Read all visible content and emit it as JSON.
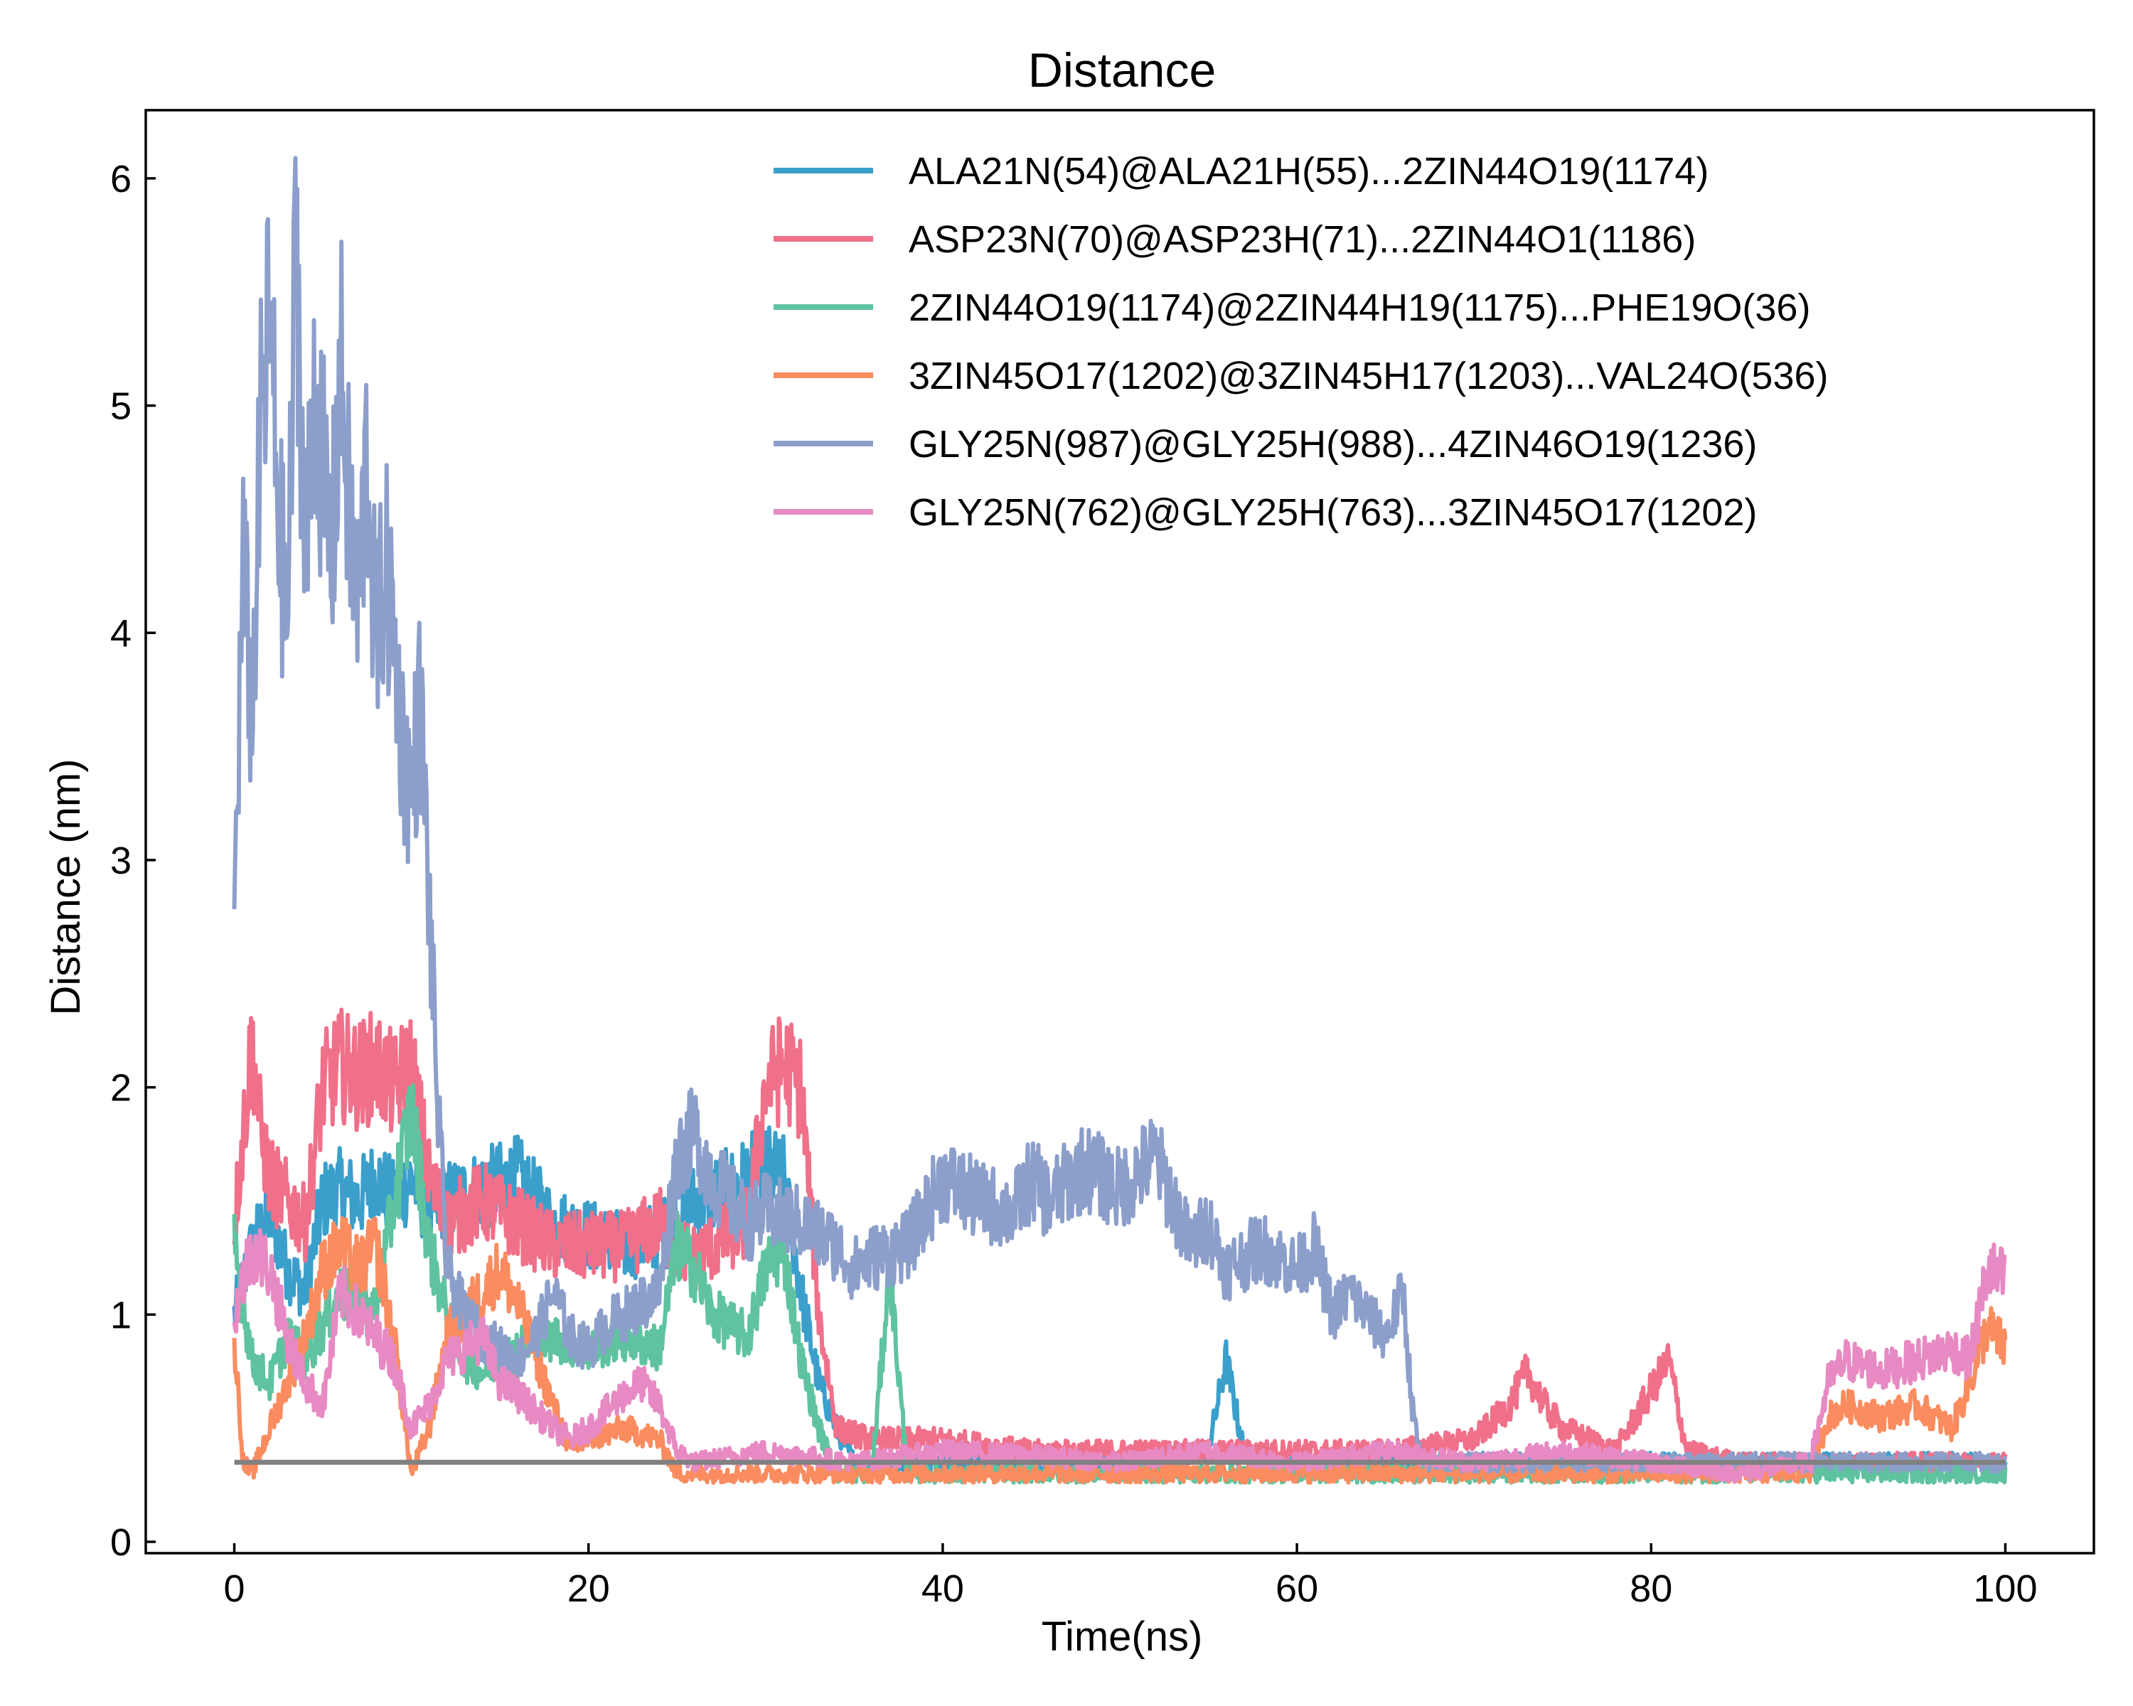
{
  "chart_data": {
    "type": "line",
    "title": "Distance",
    "xlabel": "Time(ns)",
    "ylabel": "Distance (nm)",
    "xlim": [
      -5,
      105
    ],
    "ylim": [
      -0.05,
      6.3
    ],
    "xticks": [
      0,
      20,
      40,
      60,
      80,
      100
    ],
    "yticks": [
      0,
      1,
      2,
      3,
      4,
      5,
      6
    ],
    "legend_position": "top-right",
    "grid": false,
    "reference_line": {
      "y": 0.35,
      "color": "#808080"
    },
    "series": [
      {
        "name": "ALA21N(54)@ALA21H(55)...2ZIN44O19(1174)",
        "color": "#3a9fcb",
        "x": [
          0,
          1,
          2,
          3,
          4,
          5,
          6,
          7,
          8,
          9,
          10,
          11,
          12,
          14,
          16,
          18,
          20,
          22,
          24,
          25,
          26,
          28,
          30,
          31,
          32,
          33,
          34,
          35,
          37,
          40,
          45,
          50,
          55,
          56,
          57,
          58,
          60,
          65,
          70,
          75,
          80,
          85,
          90,
          95,
          100
        ],
        "y": [
          1.0,
          1.3,
          1.45,
          1.2,
          1.1,
          1.5,
          1.55,
          1.5,
          1.6,
          1.5,
          1.6,
          1.45,
          1.5,
          1.55,
          1.6,
          1.4,
          1.35,
          1.3,
          1.35,
          1.4,
          1.5,
          1.55,
          1.65,
          1.6,
          1.1,
          0.7,
          0.5,
          0.35,
          0.35,
          0.35,
          0.35,
          0.35,
          0.4,
          0.8,
          0.4,
          0.35,
          0.35,
          0.35,
          0.35,
          0.35,
          0.35,
          0.35,
          0.35,
          0.35,
          0.35
        ]
      },
      {
        "name": "ASP23N(70)@ASP23H(71)...2ZIN44O1(1186)",
        "color": "#f0708a",
        "x": [
          0,
          0.5,
          1,
          1.5,
          2,
          3,
          4,
          5,
          6,
          7,
          8,
          9,
          10,
          11,
          12,
          14,
          16,
          18,
          20,
          22,
          24,
          25,
          26,
          28,
          29,
          30,
          31,
          32,
          33,
          34,
          36,
          40,
          45,
          50,
          55,
          60,
          65,
          70,
          72,
          73,
          74,
          75,
          78,
          81,
          82,
          85,
          90,
          95,
          100
        ],
        "y": [
          1.4,
          1.8,
          2.2,
          1.8,
          1.6,
          1.5,
          1.4,
          2.0,
          2.1,
          2.05,
          2.1,
          2.0,
          2.1,
          1.6,
          1.4,
          1.5,
          1.4,
          1.3,
          1.3,
          1.3,
          1.4,
          1.3,
          1.25,
          1.35,
          1.4,
          2.0,
          2.1,
          2.0,
          1.0,
          0.5,
          0.45,
          0.45,
          0.4,
          0.4,
          0.4,
          0.4,
          0.4,
          0.45,
          0.6,
          0.75,
          0.6,
          0.5,
          0.4,
          0.8,
          0.4,
          0.35,
          0.35,
          0.35,
          0.35
        ]
      },
      {
        "name": "2ZIN44O19(1174)@2ZIN44H19(1175)...PHE19O(36)",
        "color": "#5fc3a0",
        "x": [
          0,
          1,
          2,
          3,
          4,
          6,
          8,
          9,
          10,
          11,
          12,
          13,
          14,
          16,
          18,
          20,
          22,
          24,
          25,
          26,
          27,
          28,
          29,
          30,
          31,
          32,
          33,
          34,
          36,
          37,
          38,
          40,
          45,
          50,
          55,
          60,
          65,
          70,
          75,
          80,
          85,
          90,
          95,
          100
        ],
        "y": [
          1.3,
          0.8,
          0.7,
          0.9,
          0.8,
          1.1,
          1.0,
          1.5,
          1.9,
          1.3,
          1.0,
          0.8,
          0.75,
          0.85,
          0.9,
          0.85,
          0.9,
          0.85,
          1.3,
          1.2,
          1.0,
          0.95,
          0.9,
          1.2,
          1.3,
          0.8,
          0.5,
          0.3,
          0.3,
          1.2,
          0.3,
          0.3,
          0.3,
          0.3,
          0.3,
          0.3,
          0.3,
          0.3,
          0.3,
          0.3,
          0.3,
          0.3,
          0.3,
          0.3
        ]
      },
      {
        "name": "3ZIN45O17(1202)@3ZIN45H17(1203)...VAL24O(536)",
        "color": "#fa8c5f",
        "x": [
          0,
          0.5,
          1,
          2,
          3,
          4,
          5,
          6,
          7,
          8,
          9,
          10,
          11,
          12,
          13,
          14,
          15,
          16,
          18,
          19,
          20,
          22,
          24,
          25,
          26,
          30,
          35,
          40,
          45,
          50,
          55,
          60,
          65,
          70,
          75,
          80,
          85,
          89,
          90,
          91,
          93,
          95,
          97,
          98,
          99,
          100
        ],
        "y": [
          0.9,
          0.35,
          0.3,
          0.5,
          0.7,
          0.9,
          1.2,
          1.3,
          1.2,
          1.3,
          0.9,
          0.3,
          0.5,
          0.9,
          1.0,
          1.1,
          1.2,
          1.05,
          0.6,
          0.4,
          0.45,
          0.5,
          0.45,
          0.3,
          0.3,
          0.3,
          0.3,
          0.3,
          0.3,
          0.3,
          0.3,
          0.3,
          0.3,
          0.3,
          0.3,
          0.3,
          0.3,
          0.3,
          0.55,
          0.6,
          0.55,
          0.6,
          0.5,
          0.7,
          0.95,
          0.85
        ]
      },
      {
        "name": "GLY25N(987)@GLY25H(988)...4ZIN46O19(1236)",
        "color": "#8c9fcb",
        "x": [
          0,
          0.5,
          1,
          1.5,
          2,
          2.5,
          3,
          3.5,
          4,
          4.5,
          5,
          5.5,
          6,
          6.5,
          7,
          7.5,
          8,
          8.5,
          9,
          9.5,
          10,
          10.5,
          11,
          11.5,
          12,
          13,
          14,
          15,
          16,
          17,
          18,
          19,
          20,
          21,
          22,
          23,
          24,
          25,
          26,
          27,
          28,
          29,
          30,
          32,
          34,
          35,
          36,
          38,
          40,
          42,
          44,
          45,
          46,
          48,
          50,
          52,
          53,
          54,
          55,
          56,
          58,
          60,
          61,
          62,
          63,
          64,
          65,
          66,
          66.5,
          67,
          70,
          75,
          80,
          85,
          90,
          95,
          100
        ],
        "y": [
          2.8,
          4.3,
          3.6,
          4.9,
          5.4,
          4.5,
          4.0,
          5.8,
          4.2,
          5.1,
          4.7,
          4.3,
          5.2,
          4.5,
          4.1,
          4.8,
          3.9,
          4.3,
          4.0,
          3.5,
          3.3,
          3.7,
          2.8,
          1.9,
          1.2,
          1.0,
          0.9,
          0.85,
          0.8,
          0.9,
          1.1,
          0.9,
          0.85,
          0.95,
          1.0,
          1.05,
          1.1,
          1.7,
          1.8,
          1.6,
          1.5,
          1.4,
          1.45,
          1.4,
          1.3,
          1.2,
          1.25,
          1.3,
          1.6,
          1.5,
          1.45,
          1.6,
          1.5,
          1.65,
          1.55,
          1.7,
          1.5,
          1.3,
          1.4,
          1.2,
          1.3,
          1.2,
          1.3,
          1.0,
          1.1,
          1.0,
          0.9,
          1.1,
          0.6,
          0.35,
          0.35,
          0.35,
          0.35,
          0.35,
          0.35,
          0.35,
          0.35
        ]
      },
      {
        "name": "GLY25N(762)@GLY25H(763)...3ZIN45O17(1202)",
        "color": "#e78ac3",
        "x": [
          0,
          1,
          2,
          3,
          4,
          5,
          6,
          7,
          8,
          9,
          10,
          11,
          12,
          14,
          15,
          16,
          18,
          19,
          20,
          22,
          23,
          24,
          25,
          26,
          30,
          35,
          40,
          45,
          50,
          55,
          60,
          65,
          70,
          75,
          80,
          85,
          89,
          90,
          91,
          93,
          95,
          97,
          98,
          99,
          100
        ],
        "y": [
          1.0,
          1.3,
          1.2,
          0.9,
          0.7,
          0.6,
          1.1,
          1.0,
          0.9,
          0.8,
          0.5,
          0.6,
          0.8,
          0.9,
          0.7,
          0.65,
          0.5,
          0.45,
          0.5,
          0.65,
          0.7,
          0.6,
          0.4,
          0.35,
          0.4,
          0.35,
          0.4,
          0.38,
          0.35,
          0.4,
          0.35,
          0.4,
          0.35,
          0.4,
          0.35,
          0.3,
          0.35,
          0.7,
          0.8,
          0.75,
          0.8,
          0.85,
          0.8,
          1.2,
          1.15
        ]
      }
    ]
  }
}
